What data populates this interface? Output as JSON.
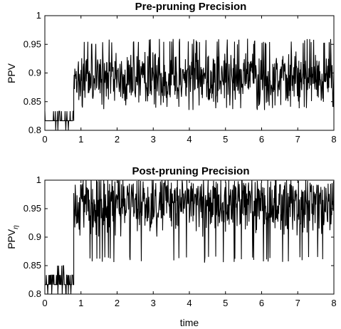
{
  "chart_data": [
    {
      "type": "line",
      "title": "Pre-pruning Precision",
      "xlabel": "",
      "ylabel": "PPV",
      "ylabel_subscript": "",
      "xlim": [
        0,
        8
      ],
      "ylim": [
        0.8,
        1.0
      ],
      "xticks": [
        "0",
        "1",
        "2",
        "3",
        "4",
        "5",
        "6",
        "7",
        "8"
      ],
      "yticks": [
        "0.8",
        "0.85",
        "0.9",
        "0.95",
        "1"
      ],
      "grid": false,
      "series": [
        {
          "color": "#000000",
          "segments": [
            {
              "x_start": 0.0,
              "x_end": 0.8,
              "min": 0.805,
              "max": 0.835,
              "base": 0.819
            },
            {
              "x_start": 0.8,
              "x_end": 8.0,
              "min": 0.835,
              "max": 0.96,
              "base": 0.891
            }
          ]
        }
      ]
    },
    {
      "type": "line",
      "title": "Post-pruning Precision",
      "xlabel": "time",
      "ylabel": "PPV",
      "ylabel_subscript": "η",
      "xlim": [
        0,
        8
      ],
      "ylim": [
        0.8,
        1.0
      ],
      "xticks": [
        "0",
        "1",
        "2",
        "3",
        "4",
        "5",
        "6",
        "7",
        "8"
      ],
      "yticks": [
        "0.8",
        "0.85",
        "0.9",
        "0.95",
        "1"
      ],
      "grid": false,
      "series": [
        {
          "color": "#000000",
          "segments": [
            {
              "x_start": 0.0,
              "x_end": 0.8,
              "min": 0.8,
              "max": 0.847,
              "base": 0.82
            },
            {
              "x_start": 0.8,
              "x_end": 8.0,
              "min": 0.855,
              "max": 1.0,
              "base": 0.955
            }
          ]
        }
      ]
    }
  ]
}
